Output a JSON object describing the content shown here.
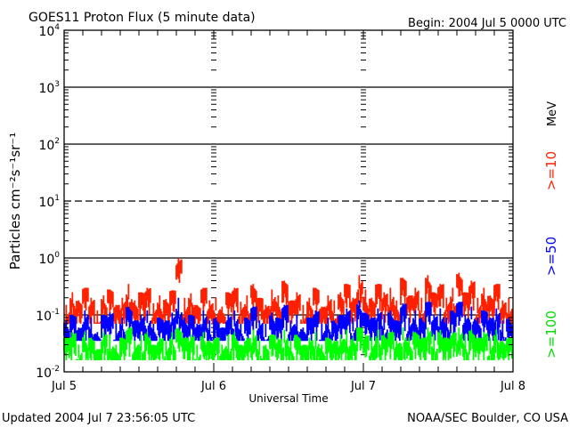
{
  "chart_data": {
    "type": "line",
    "title": "GOES11 Proton Flux (5 minute data)",
    "begin_label": "Begin: 2004 Jul 5 0000 UTC",
    "ylabel": "Particles cm⁻²s⁻¹sr⁻¹",
    "xlabel": "Universal Time",
    "yscale": "log",
    "ylim": [
      0.01,
      10000
    ],
    "ytick_labels": [
      {
        "base": "10",
        "exp": "-2",
        "value": 0.01
      },
      {
        "base": "10",
        "exp": "-1",
        "value": 0.1
      },
      {
        "base": "10",
        "exp": "0",
        "value": 1
      },
      {
        "base": "10",
        "exp": "1",
        "value": 10
      },
      {
        "base": "10",
        "exp": "2",
        "value": 100
      },
      {
        "base": "10",
        "exp": "3",
        "value": 1000
      },
      {
        "base": "10",
        "exp": "4",
        "value": 10000
      }
    ],
    "xlim_hours": [
      0,
      72
    ],
    "xtick_labels": [
      {
        "label": "Jul 5",
        "hour": 0
      },
      {
        "label": "Jul 6",
        "hour": 24
      },
      {
        "label": "Jul 7",
        "hour": 48
      },
      {
        "label": "Jul 8",
        "hour": 72
      }
    ],
    "energy_unit": "MeV",
    "series": [
      {
        "name": ">=10",
        "color": "#ff2000",
        "values": [
          0.15,
          0.25,
          0.18,
          0.3,
          0.2,
          0.12,
          0.22,
          0.28,
          0.15,
          0.2,
          0.35,
          0.18,
          0.25,
          0.3,
          0.16,
          0.22,
          0.19,
          0.27,
          1.0,
          0.2,
          0.24,
          0.15,
          0.3,
          0.18,
          0.2,
          0.14,
          0.25,
          0.3,
          0.17,
          0.22,
          0.35,
          0.2,
          0.15,
          0.28,
          0.22,
          0.4,
          0.18,
          0.25,
          0.15,
          0.2,
          0.3,
          0.14,
          0.22,
          0.18,
          0.25,
          0.35,
          0.2,
          0.5,
          0.28,
          0.2,
          0.35,
          0.25,
          0.3,
          0.18,
          0.45,
          0.22,
          0.3,
          0.2,
          0.5,
          0.25,
          0.35,
          0.2,
          0.3,
          0.55,
          0.25,
          0.4,
          0.2,
          0.3,
          0.22,
          0.35,
          0.18,
          0.2
        ]
      },
      {
        "name": ">=50",
        "color": "#0000ff",
        "values": [
          0.08,
          0.1,
          0.06,
          0.12,
          0.09,
          0.05,
          0.1,
          0.11,
          0.07,
          0.09,
          0.14,
          0.08,
          0.1,
          0.12,
          0.07,
          0.09,
          0.08,
          0.11,
          0.2,
          0.09,
          0.1,
          0.07,
          0.12,
          0.08,
          0.09,
          0.06,
          0.1,
          0.12,
          0.07,
          0.09,
          0.14,
          0.08,
          0.07,
          0.11,
          0.09,
          0.15,
          0.08,
          0.1,
          0.06,
          0.09,
          0.12,
          0.07,
          0.09,
          0.08,
          0.1,
          0.13,
          0.09,
          0.18,
          0.11,
          0.09,
          0.13,
          0.1,
          0.12,
          0.08,
          0.16,
          0.09,
          0.12,
          0.09,
          0.17,
          0.1,
          0.13,
          0.09,
          0.12,
          0.17,
          0.1,
          0.14,
          0.09,
          0.12,
          0.09,
          0.13,
          0.08,
          0.09
        ]
      },
      {
        "name": ">=100",
        "color": "#00ff00",
        "values": [
          0.04,
          0.05,
          0.03,
          0.05,
          0.04,
          0.025,
          0.05,
          0.045,
          0.03,
          0.04,
          0.06,
          0.035,
          0.045,
          0.05,
          0.03,
          0.04,
          0.035,
          0.05,
          0.06,
          0.04,
          0.045,
          0.03,
          0.05,
          0.035,
          0.04,
          0.03,
          0.045,
          0.05,
          0.03,
          0.04,
          0.055,
          0.035,
          0.03,
          0.045,
          0.04,
          0.055,
          0.035,
          0.045,
          0.03,
          0.04,
          0.05,
          0.03,
          0.04,
          0.035,
          0.045,
          0.055,
          0.04,
          0.06,
          0.045,
          0.04,
          0.055,
          0.045,
          0.05,
          0.035,
          0.06,
          0.04,
          0.05,
          0.04,
          0.06,
          0.045,
          0.055,
          0.04,
          0.05,
          0.06,
          0.045,
          0.055,
          0.04,
          0.05,
          0.04,
          0.055,
          0.035,
          0.04
        ]
      }
    ]
  },
  "footer": {
    "updated": "Updated 2004 Jul  7 23:56:05 UTC",
    "source": "NOAA/SEC Boulder, CO USA"
  }
}
